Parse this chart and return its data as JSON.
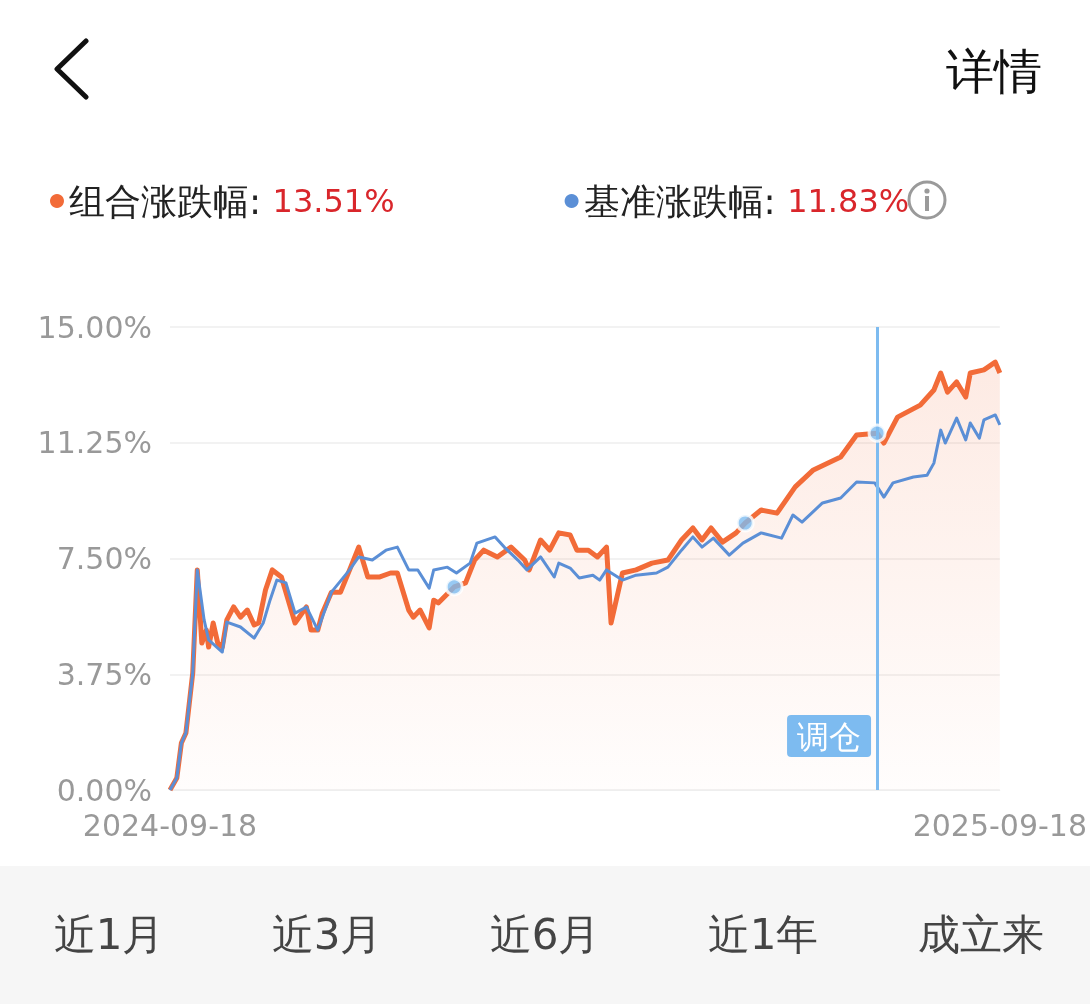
{
  "chart_data": {
    "type": "line",
    "legend": "top left",
    "grid": "y",
    "marker": "none",
    "xlim": [
      "2024-09-18",
      "2025-09-18"
    ],
    "xticks": [
      "2024-09-18",
      "2025-09-18"
    ],
    "ylim": [
      0,
      15
    ],
    "yticks": [
      {
        "value": 0,
        "label": "0.00%"
      },
      {
        "value": 3.75,
        "label": "3.75%"
      },
      {
        "value": 7.5,
        "label": "7.50%"
      },
      {
        "value": 11.25,
        "label": "11.25%"
      },
      {
        "value": 15,
        "label": "15.00%"
      }
    ],
    "annotations": [
      "详情",
      "近1月",
      "近3月",
      "近6月",
      "近1年",
      "成立来"
    ],
    "ref_lines": [
      {
        "axis": "x",
        "value": "2025-07-26",
        "label": "调仓",
        "color": "#7dbbf0"
      }
    ],
    "series": [
      {
        "name": "组合涨跌幅: 13.51%",
        "type": "area",
        "color": "#f26b38",
        "x": [
          "2024-09-18",
          "2024-09-21",
          "2024-09-23",
          "2024-09-25",
          "2024-09-28",
          "2024-09-30",
          "2024-10-02",
          "2024-10-04",
          "2024-10-05",
          "2024-10-07",
          "2024-10-09",
          "2024-10-11",
          "2024-10-13",
          "2024-10-16",
          "2024-10-19",
          "2024-10-22",
          "2024-10-25",
          "2024-10-27",
          "2024-10-30",
          "2024-11-02",
          "2024-11-06",
          "2024-11-12",
          "2024-11-17",
          "2024-11-19",
          "2024-11-22",
          "2024-11-24",
          "2024-11-28",
          "2024-12-02",
          "2024-12-06",
          "2024-12-10",
          "2024-12-14",
          "2024-12-19",
          "2024-12-24",
          "2024-12-27",
          "2025-01-01",
          "2025-01-03",
          "2025-01-06",
          "2025-01-10",
          "2025-01-12",
          "2025-01-14",
          "2025-01-21",
          "2025-01-26",
          "2025-01-30",
          "2025-02-03",
          "2025-02-09",
          "2025-02-15",
          "2025-02-21",
          "2025-02-23",
          "2025-02-28",
          "2025-03-04",
          "2025-03-08",
          "2025-03-13",
          "2025-03-16",
          "2025-03-21",
          "2025-03-25",
          "2025-03-29",
          "2025-03-31",
          "2025-04-05",
          "2025-04-11",
          "2025-04-18",
          "2025-04-25",
          "2025-05-01",
          "2025-05-06",
          "2025-05-10",
          "2025-05-14",
          "2025-05-19",
          "2025-05-25",
          "2025-05-29",
          "2025-06-05",
          "2025-06-12",
          "2025-06-20",
          "2025-06-28",
          "2025-07-10",
          "2025-07-17",
          "2025-07-26",
          "2025-07-29",
          "2025-08-04",
          "2025-08-14",
          "2025-08-20",
          "2025-08-23",
          "2025-08-26",
          "2025-08-30",
          "2025-09-03",
          "2025-09-05",
          "2025-09-11",
          "2025-09-16",
          "2025-09-18"
        ],
        "values": [
          0,
          0.39,
          1.52,
          1.85,
          3.79,
          7.13,
          4.76,
          5.18,
          4.63,
          5.41,
          4.76,
          4.63,
          5.51,
          5.93,
          5.6,
          5.83,
          5.35,
          5.41,
          6.48,
          7.13,
          6.9,
          5.41,
          5.93,
          5.18,
          5.18,
          5.73,
          6.41,
          6.41,
          7.13,
          7.87,
          6.9,
          6.9,
          7.03,
          7.03,
          5.83,
          5.6,
          5.83,
          5.25,
          6.15,
          6.06,
          6.58,
          6.71,
          7.45,
          7.77,
          7.55,
          7.87,
          7.45,
          7.13,
          8.1,
          7.77,
          8.33,
          8.26,
          7.77,
          7.77,
          7.55,
          7.87,
          5.41,
          7.03,
          7.13,
          7.35,
          7.45,
          8.1,
          8.49,
          8.1,
          8.49,
          8.03,
          8.33,
          8.65,
          9.07,
          8.97,
          9.82,
          10.37,
          10.79,
          11.5,
          11.56,
          11.24,
          12.08,
          12.47,
          12.96,
          13.51,
          12.89,
          13.22,
          12.73,
          13.51,
          13.61,
          13.86,
          13.51
        ]
      },
      {
        "name": "基准涨跌幅: 11.83%",
        "type": "line",
        "color": "#5b8fd6",
        "x": [
          "2024-09-18",
          "2024-09-21",
          "2024-09-23",
          "2024-09-25",
          "2024-09-28",
          "2024-09-30",
          "2024-10-03",
          "2024-10-05",
          "2024-10-11",
          "2024-10-13",
          "2024-10-19",
          "2024-10-25",
          "2024-10-29",
          "2024-11-01",
          "2024-11-04",
          "2024-11-08",
          "2024-11-12",
          "2024-11-17",
          "2024-11-22",
          "2024-11-28",
          "2024-12-06",
          "2024-12-10",
          "2024-12-16",
          "2024-12-22",
          "2024-12-27",
          "2025-01-01",
          "2025-01-05",
          "2025-01-10",
          "2025-01-12",
          "2025-01-18",
          "2025-01-22",
          "2025-01-28",
          "2025-01-31",
          "2025-02-08",
          "2025-02-12",
          "2025-02-18",
          "2025-02-22",
          "2025-02-28",
          "2025-03-06",
          "2025-03-08",
          "2025-03-13",
          "2025-03-17",
          "2025-03-23",
          "2025-03-26",
          "2025-03-29",
          "2025-04-05",
          "2025-04-11",
          "2025-04-20",
          "2025-04-25",
          "2025-05-01",
          "2025-05-06",
          "2025-05-10",
          "2025-05-15",
          "2025-05-22",
          "2025-05-28",
          "2025-06-05",
          "2025-06-14",
          "2025-06-19",
          "2025-06-23",
          "2025-07-02",
          "2025-07-10",
          "2025-07-17",
          "2025-07-25",
          "2025-07-29",
          "2025-08-02",
          "2025-08-11",
          "2025-08-17",
          "2025-08-20",
          "2025-08-23",
          "2025-08-25",
          "2025-08-30",
          "2025-09-03",
          "2025-09-05",
          "2025-09-09",
          "2025-09-11",
          "2025-09-16",
          "2025-09-18"
        ],
        "values": [
          0,
          0.39,
          1.52,
          1.85,
          3.79,
          7.13,
          5.51,
          4.86,
          4.47,
          5.44,
          5.28,
          4.92,
          5.41,
          6.15,
          6.8,
          6.71,
          5.73,
          5.93,
          5.18,
          6.41,
          7.13,
          7.55,
          7.45,
          7.77,
          7.87,
          7.13,
          7.13,
          6.54,
          7.13,
          7.22,
          7.03,
          7.35,
          8.0,
          8.2,
          7.87,
          7.45,
          7.13,
          7.55,
          6.9,
          7.35,
          7.19,
          6.87,
          6.96,
          6.8,
          7.13,
          6.8,
          6.96,
          7.03,
          7.22,
          7.77,
          8.2,
          7.87,
          8.16,
          7.61,
          8.0,
          8.33,
          8.16,
          8.91,
          8.68,
          9.3,
          9.46,
          9.98,
          9.95,
          9.49,
          9.95,
          10.14,
          10.2,
          10.59,
          11.66,
          11.24,
          12.05,
          11.34,
          11.89,
          11.4,
          11.99,
          12.15,
          11.83
        ]
      },
      {
        "type": "scatter",
        "marker": "circle",
        "color": "#7dbbf0",
        "x": [
          "2025-01-21",
          "2025-05-29",
          "2025-07-26"
        ],
        "values": [
          6.58,
          8.65,
          11.56
        ]
      }
    ]
  }
}
